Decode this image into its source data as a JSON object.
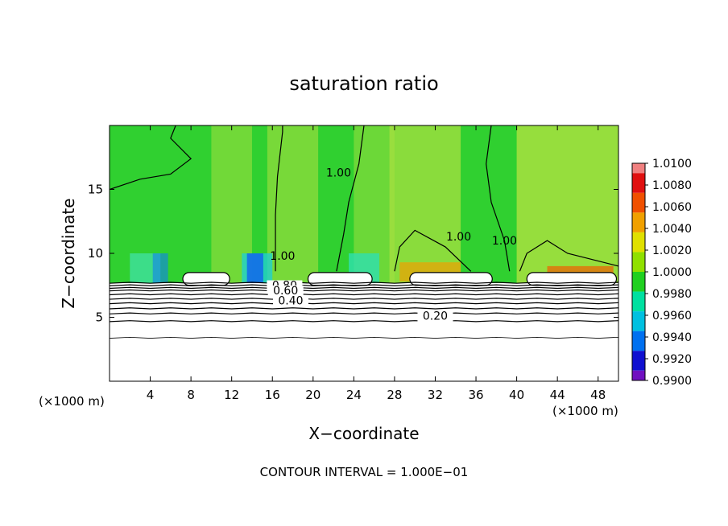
{
  "chart_data": {
    "type": "heatmap",
    "title": "saturation ratio",
    "xlabel": "X−coordinate",
    "ylabel": "Z−coordinate",
    "x_unit_left": "(×1000 m)",
    "x_unit_right": "(×1000 m)",
    "footer": "CONTOUR INTERVAL = 1.000E−01",
    "xlim": [
      0,
      50
    ],
    "ylim": [
      0,
      20
    ],
    "x_ticks": [
      4,
      8,
      12,
      16,
      20,
      24,
      28,
      32,
      36,
      40,
      44,
      48
    ],
    "y_ticks": [
      5,
      10,
      15
    ],
    "colorbar": {
      "min": 0.99,
      "max": 1.01,
      "labels": [
        "1.0100",
        "1.0080",
        "1.0060",
        "1.0040",
        "1.0020",
        "1.0000",
        "0.9980",
        "0.9960",
        "0.9940",
        "0.9920",
        "0.9900"
      ],
      "colors": [
        "#f08080",
        "#e01010",
        "#f05000",
        "#f0a000",
        "#e0e000",
        "#90e000",
        "#20d020",
        "#00e0a0",
        "#00c0e0",
        "#0070f0",
        "#1010d0",
        "#7010c0"
      ]
    },
    "contour_labels": [
      {
        "text": "1.00",
        "x": 22.5,
        "z": 16.0
      },
      {
        "text": "1.00",
        "x": 34.3,
        "z": 11.0
      },
      {
        "text": "1.00",
        "x": 38.8,
        "z": 10.7
      },
      {
        "text": "1.00",
        "x": 17.0,
        "z": 9.5
      },
      {
        "text": "0.80",
        "x": 17.2,
        "z": 7.2
      },
      {
        "text": "0.60",
        "x": 17.3,
        "z": 6.8
      },
      {
        "text": "0.40",
        "x": 17.8,
        "z": 6.0
      },
      {
        "text": "0.20",
        "x": 32.0,
        "z": 4.8
      }
    ],
    "profile_contour_levels_z": [
      3.4,
      4.7,
      5.3,
      5.7,
      6.1,
      6.45,
      6.8,
      7.1,
      7.3,
      7.5,
      7.7
    ]
  }
}
